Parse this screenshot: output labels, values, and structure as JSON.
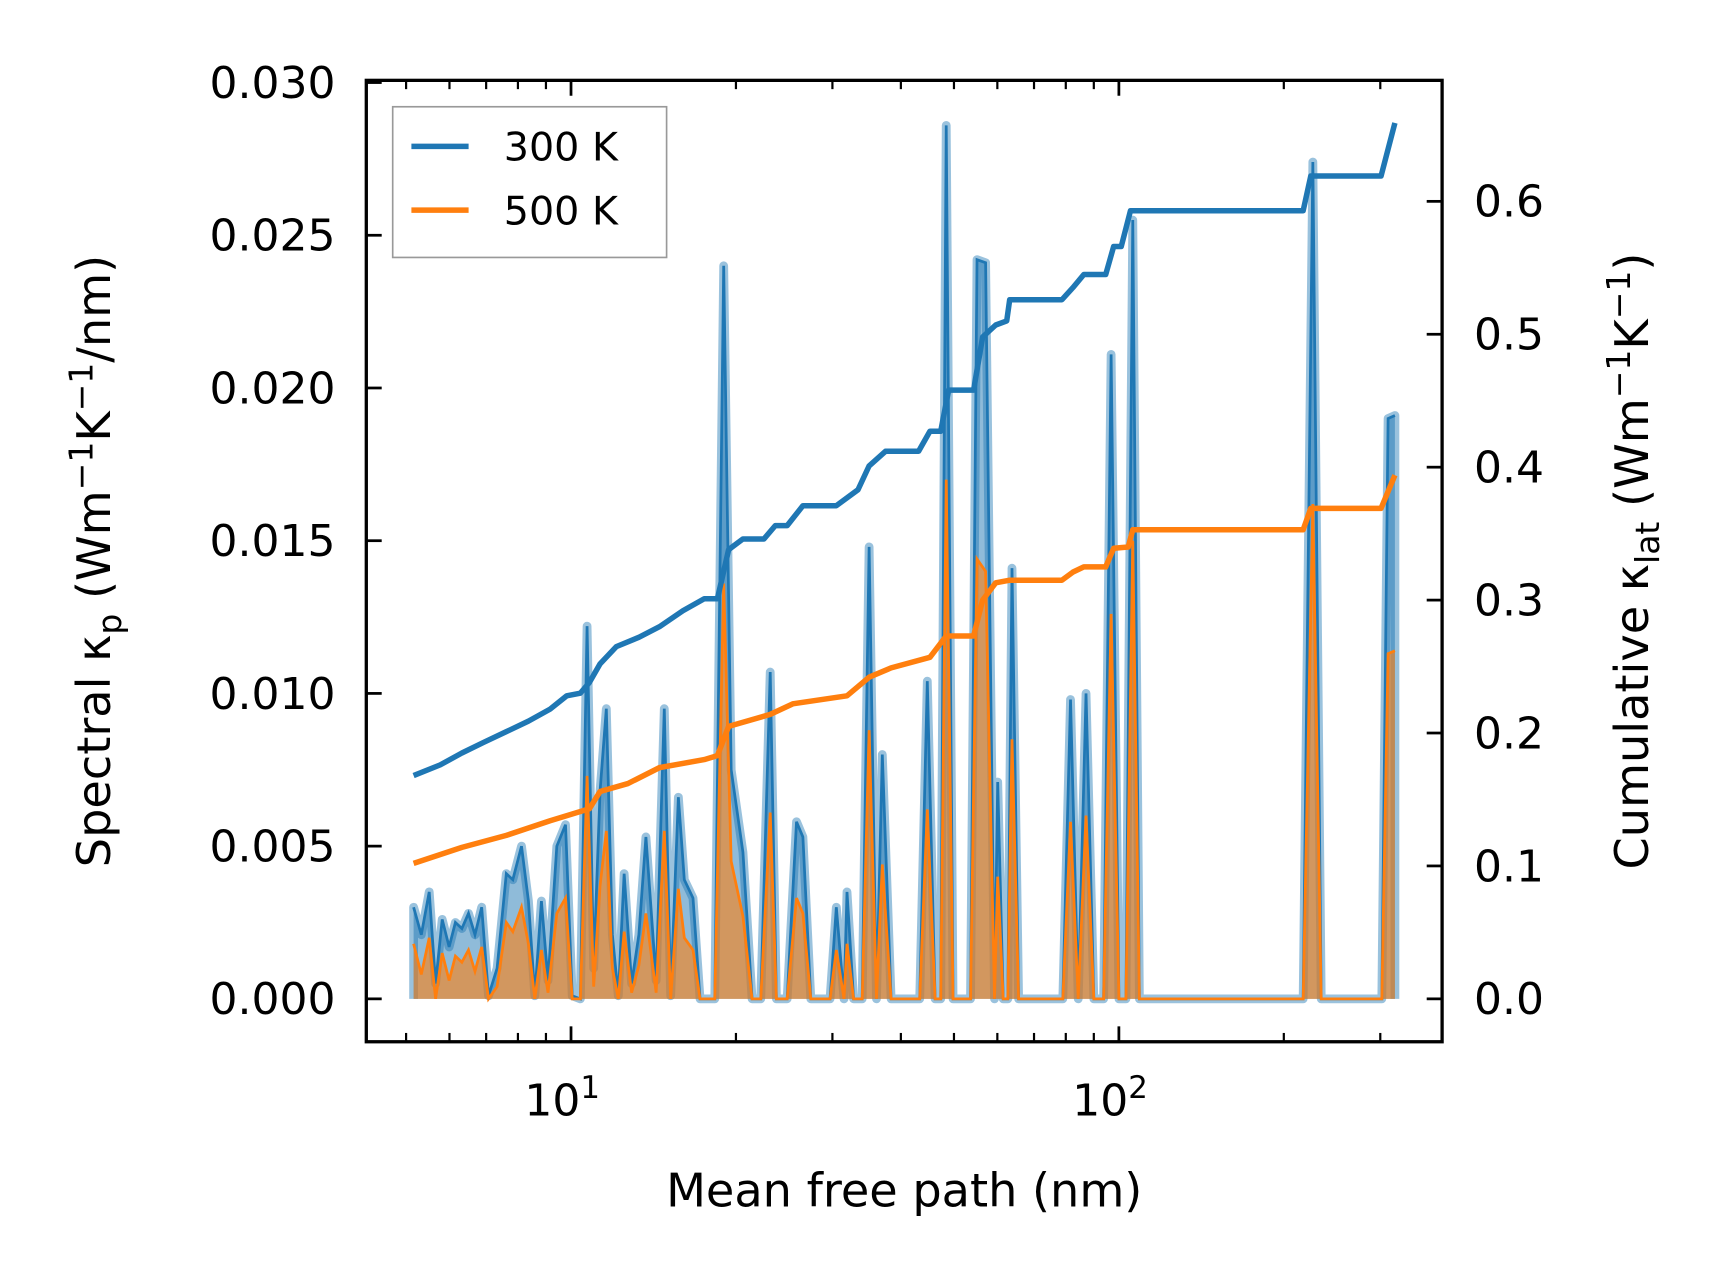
{
  "chart_data": {
    "type": "line",
    "xscale": "log",
    "xlabel": "Mean free path (nm)",
    "xlim": [
      4.23,
      389
    ],
    "ylim_left": [
      0,
      0.0301
    ],
    "ylim_right": [
      0,
      0.691
    ],
    "ylabel_left": {
      "main": "Spectral κ",
      "sub": "p",
      "a": " (Wm",
      "s1": "−1",
      "b": "K",
      "s2": "−1",
      "c": "/nm)"
    },
    "ylabel_right": {
      "main": "Cumulative κ",
      "sub": "lat",
      "a": " (Wm",
      "s1": "−1",
      "b": "K",
      "s2": "−1",
      "c": ")"
    },
    "x_ticks": [
      {
        "value": 10,
        "base": "10",
        "exp": "1"
      },
      {
        "value": 100,
        "base": "10",
        "exp": "2"
      }
    ],
    "x_minor_ticks": [
      5,
      6,
      7,
      8,
      9,
      20,
      30,
      40,
      50,
      60,
      70,
      80,
      90,
      200,
      300
    ],
    "y_left_ticks": [
      {
        "value": 0,
        "label": "0.000"
      },
      {
        "value": 0.005,
        "label": "0.005"
      },
      {
        "value": 0.01,
        "label": "0.010"
      },
      {
        "value": 0.015,
        "label": "0.015"
      },
      {
        "value": 0.02,
        "label": "0.020"
      },
      {
        "value": 0.025,
        "label": "0.025"
      },
      {
        "value": 0.03,
        "label": "0.030"
      }
    ],
    "y_right_ticks": [
      {
        "value": 0,
        "label": "0.0"
      },
      {
        "value": 0.1,
        "label": "0.1"
      },
      {
        "value": 0.2,
        "label": "0.2"
      },
      {
        "value": 0.3,
        "label": "0.3"
      },
      {
        "value": 0.4,
        "label": "0.4"
      },
      {
        "value": 0.5,
        "label": "0.5"
      },
      {
        "value": 0.6,
        "label": "0.6"
      }
    ],
    "legend": {
      "position": "upper-left",
      "entries": [
        {
          "label": "300 K",
          "color": "#1f77b4"
        },
        {
          "label": "500 K",
          "color": "#ff7f0e"
        }
      ]
    },
    "spectral": {
      "mfp": [
        5.16,
        5.33,
        5.51,
        5.66,
        5.82,
        5.99,
        6.15,
        6.32,
        6.5,
        6.68,
        6.87,
        7.07,
        7.33,
        7.62,
        7.83,
        8.12,
        8.36,
        8.59,
        8.83,
        9.08,
        9.42,
        9.77,
        10.05,
        10.4,
        10.7,
        11.0,
        11.3,
        11.6,
        11.9,
        12.2,
        12.5,
        12.9,
        13.3,
        13.7,
        14.3,
        14.8,
        15.2,
        15.7,
        16.1,
        16.7,
        17.2,
        18.3,
        19.0,
        19.6,
        20.6,
        21.4,
        22.2,
        23.1,
        23.7,
        24.8,
        25.8,
        26.5,
        27.4,
        29.7,
        30.5,
        31.5,
        31.9,
        32.8,
        34.0,
        35.0,
        36.1,
        37.0,
        38.4,
        43.3,
        44.7,
        46.2,
        47.3,
        48.4,
        49.8,
        53.6,
        55.1,
        57.1,
        59.3,
        60.1,
        61.5,
        62.7,
        63.8,
        65.6,
        79.0,
        81.6,
        84.3,
        87.1,
        90.0,
        93.8,
        96.8,
        100,
        103,
        106,
        109,
        217,
        226,
        234,
        302,
        310,
        319
      ],
      "series": [
        {
          "name": "300 K",
          "color": "#1f77b4",
          "values": [
            0.003,
            0.0021,
            0.0035,
            0.0005,
            0.0026,
            0.0017,
            0.0025,
            0.0023,
            0.0028,
            0.0021,
            0.003,
            0.0001,
            0.001,
            0.0041,
            0.0039,
            0.005,
            0.0032,
            0.0001,
            0.0032,
            0.0006,
            0.005,
            0.0057,
            0.0001,
            0,
            0.0122,
            0.001,
            0.0068,
            0.0095,
            0.0021,
            0.0001,
            0.0041,
            0.0005,
            0.0021,
            0.0053,
            0.0006,
            0.0095,
            0.0001,
            0.0066,
            0.0039,
            0.0033,
            0,
            0,
            0.024,
            0.0075,
            0.0048,
            0,
            0,
            0.0107,
            0,
            0,
            0.0058,
            0.0053,
            0,
            0,
            0.003,
            0,
            0.0035,
            0,
            0,
            0.0148,
            0,
            0.008,
            0,
            0,
            0.0104,
            0,
            0,
            0.0286,
            0,
            0,
            0.0242,
            0.0241,
            0,
            0.0071,
            0,
            0,
            0.0141,
            0,
            0,
            0.0098,
            0,
            0.01,
            0,
            0,
            0.0211,
            0,
            0,
            0.0255,
            0,
            0,
            0.0274,
            0,
            0,
            0.019,
            0.0191
          ]
        },
        {
          "name": "500 K",
          "color": "#ff7f0e",
          "values": [
            0.0018,
            0.0008,
            0.002,
            0,
            0.0015,
            0.0006,
            0.0014,
            0.0012,
            0.0016,
            0.0009,
            0.0017,
            0,
            0.0004,
            0.0025,
            0.0022,
            0.003,
            0.0018,
            0,
            0.0016,
            0.0002,
            0.0028,
            0.0033,
            0,
            0,
            0.0073,
            0.0004,
            0.0037,
            0.0055,
            0.001,
            0,
            0.0022,
            0.0002,
            0.0011,
            0.0028,
            0.0002,
            0.0055,
            0,
            0.0036,
            0.002,
            0.0016,
            0,
            0,
            0.0136,
            0.0045,
            0.0027,
            0,
            0,
            0.0061,
            0,
            0,
            0.0033,
            0.0028,
            0,
            0,
            0.0016,
            0,
            0.0018,
            0,
            0,
            0.0088,
            0,
            0.0044,
            0,
            0,
            0.0062,
            0,
            0,
            0.017,
            0,
            0,
            0.0144,
            0.014,
            0,
            0.004,
            0,
            0,
            0.0085,
            0,
            0,
            0.0058,
            0,
            0.006,
            0,
            0,
            0.0126,
            0,
            0,
            0.015,
            0,
            0,
            0.0162,
            0,
            0,
            0.0113,
            0.0114
          ]
        }
      ]
    },
    "cumulative": [
      {
        "name": "300 K",
        "color": "#1f77b4",
        "mfp": [
          5.16,
          5.77,
          6.32,
          6.93,
          7.62,
          8.36,
          9.16,
          9.82,
          10.4,
          10.8,
          11.3,
          12.1,
          13.3,
          14.5,
          16.0,
          17.5,
          18.5,
          19.4,
          20.6,
          22.5,
          23.6,
          24.8,
          26.5,
          30.5,
          33.4,
          35.0,
          37.5,
          43.1,
          45.2,
          47.3,
          48.9,
          54.3,
          56.4,
          59.6,
          62.4,
          63.2,
          78.7,
          82.4,
          86.3,
          94.6,
          97.8,
          101,
          105,
          217,
          224,
          301,
          319
        ],
        "values": [
          0.168,
          0.176,
          0.185,
          0.193,
          0.201,
          0.209,
          0.218,
          0.228,
          0.23,
          0.238,
          0.252,
          0.265,
          0.272,
          0.28,
          0.292,
          0.301,
          0.301,
          0.338,
          0.346,
          0.346,
          0.356,
          0.356,
          0.371,
          0.371,
          0.383,
          0.401,
          0.412,
          0.412,
          0.427,
          0.427,
          0.458,
          0.458,
          0.498,
          0.507,
          0.51,
          0.526,
          0.526,
          0.535,
          0.545,
          0.545,
          0.566,
          0.566,
          0.593,
          0.593,
          0.619,
          0.619,
          0.659
        ]
      },
      {
        "name": "500 K",
        "color": "#ff7f0e",
        "mfp": [
          5.16,
          6.32,
          7.62,
          9.16,
          10.05,
          10.8,
          11.3,
          12.7,
          14.5,
          17.5,
          18.5,
          19.4,
          23.1,
          25.4,
          31.9,
          35.0,
          38.4,
          45.2,
          48.4,
          54.3,
          56.4,
          59.6,
          63.2,
          78.7,
          82.4,
          86.3,
          94.6,
          97.8,
          104,
          106,
          217,
          224,
          301,
          319
        ],
        "values": [
          0.102,
          0.114,
          0.123,
          0.134,
          0.139,
          0.143,
          0.156,
          0.162,
          0.174,
          0.18,
          0.183,
          0.205,
          0.214,
          0.222,
          0.228,
          0.242,
          0.249,
          0.257,
          0.273,
          0.273,
          0.3,
          0.313,
          0.315,
          0.315,
          0.321,
          0.325,
          0.325,
          0.339,
          0.34,
          0.353,
          0.353,
          0.369,
          0.369,
          0.394
        ]
      }
    ]
  }
}
